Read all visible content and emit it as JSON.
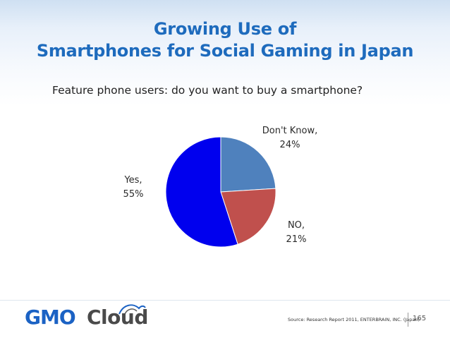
{
  "slide": {
    "title_line1": "Growing Use of",
    "title_line2": "Smartphones for Social Gaming in Japan",
    "source": "Source: Research Report 2011, ENTERBRAIN, INC. (Japan)",
    "page_number": "165",
    "logo_left": "GMO",
    "logo_right": "Cloud",
    "colors": {
      "title": "#1e6bbd",
      "logo_blue": "#1b62c4"
    }
  },
  "chart_data": {
    "type": "pie",
    "title": "Feature phone users: do you want to buy a smartphone?",
    "slices": [
      {
        "label_name": "Don't Know,",
        "label_value": "24%",
        "value": 24,
        "color": "#4f81bd"
      },
      {
        "label_name": "NO,",
        "label_value": "21%",
        "value": 21,
        "color": "#c0504d"
      },
      {
        "label_name": "Yes,",
        "label_value": "55%",
        "value": 55,
        "color": "#0000ee"
      }
    ]
  }
}
